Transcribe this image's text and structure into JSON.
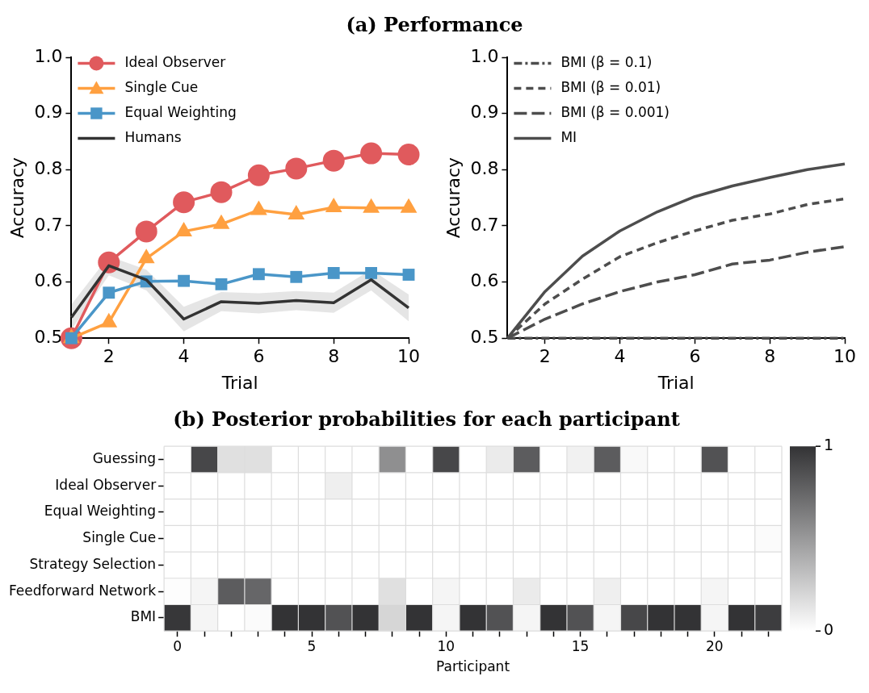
{
  "chart_data": [
    {
      "type": "line",
      "title": "(a) Performance",
      "xlabel": "Trial",
      "ylabel": "Accuracy",
      "x": [
        1,
        2,
        3,
        4,
        5,
        6,
        7,
        8,
        9,
        10
      ],
      "xlim": [
        1,
        10
      ],
      "xticks": [
        2,
        4,
        6,
        8,
        10
      ],
      "ylim": [
        0.5,
        1.0
      ],
      "yticks": [
        {
          "value": 0.5,
          "label": "0.5"
        },
        {
          "value": 0.6,
          "label": "0.6"
        },
        {
          "value": 0.7,
          "label": "0.7"
        },
        {
          "value": 0.8,
          "label": "0.8"
        },
        {
          "value": 0.9,
          "label": "0.9"
        },
        {
          "value": 1.0,
          "label": "1.0"
        }
      ],
      "grid": false,
      "legend": "top left",
      "series": [
        {
          "name": "Ideal Observer",
          "color": "#e05a5d",
          "marker": "circle",
          "line_style": "solid",
          "values": [
            0.5,
            0.635,
            0.69,
            0.742,
            0.76,
            0.79,
            0.802,
            0.816,
            0.829,
            0.827
          ]
        },
        {
          "name": "Single Cue",
          "color": "#ffa040",
          "marker": "triangle",
          "line_style": "solid",
          "values": [
            0.5,
            0.528,
            0.642,
            0.69,
            0.703,
            0.728,
            0.72,
            0.733,
            0.732,
            0.732
          ]
        },
        {
          "name": "Equal Weighting",
          "color": "#4a96c8",
          "marker": "square",
          "line_style": "solid",
          "values": [
            0.5,
            0.581,
            0.601,
            0.602,
            0.596,
            0.614,
            0.609,
            0.616,
            0.616,
            0.613
          ]
        },
        {
          "name": "Humans",
          "color": "#333333",
          "marker": "none",
          "line_style": "solid",
          "values": [
            0.537,
            0.629,
            0.604,
            0.534,
            0.565,
            0.562,
            0.567,
            0.563,
            0.604,
            0.554
          ],
          "lower": [
            0.515,
            0.612,
            0.585,
            0.512,
            0.548,
            0.544,
            0.55,
            0.545,
            0.585,
            0.53
          ],
          "upper": [
            0.56,
            0.646,
            0.622,
            0.556,
            0.582,
            0.58,
            0.584,
            0.581,
            0.622,
            0.578
          ]
        }
      ]
    },
    {
      "type": "line",
      "xlabel": "Trial",
      "ylabel": "Accuracy",
      "x": [
        1,
        2,
        3,
        4,
        5,
        6,
        7,
        8,
        9,
        10
      ],
      "xlim": [
        1,
        10
      ],
      "xticks": [
        2,
        4,
        6,
        8,
        10
      ],
      "ylim": [
        0.5,
        1.0
      ],
      "yticks": [
        {
          "value": 0.5,
          "label": "0.5"
        },
        {
          "value": 0.6,
          "label": "0.6"
        },
        {
          "value": 0.7,
          "label": "0.7"
        },
        {
          "value": 0.8,
          "label": "0.8"
        },
        {
          "value": 0.9,
          "label": "0.9"
        },
        {
          "value": 1.0,
          "label": "1.0"
        }
      ],
      "grid": false,
      "legend": "top left",
      "marker": "none",
      "series": [
        {
          "name": "BMI (β = 0.1)",
          "color": "#4d4d4d",
          "line_style": "dashed",
          "values": [
            0.5,
            0.5,
            0.5,
            0.5,
            0.5,
            0.5,
            0.5,
            0.5,
            0.5,
            0.5
          ]
        },
        {
          "name": "BMI (β = 0.01)",
          "color": "#4d4d4d",
          "line_style": "dashed",
          "values": [
            0.5,
            0.561,
            0.605,
            0.645,
            0.67,
            0.691,
            0.71,
            0.721,
            0.738,
            0.748
          ]
        },
        {
          "name": "BMI (β = 0.001)",
          "color": "#4d4d4d",
          "line_style": "dashed",
          "values": [
            0.5,
            0.534,
            0.561,
            0.583,
            0.6,
            0.613,
            0.632,
            0.639,
            0.653,
            0.663
          ]
        },
        {
          "name": "MI",
          "color": "#4d4d4d",
          "line_style": "solid",
          "values": [
            0.5,
            0.583,
            0.646,
            0.691,
            0.725,
            0.752,
            0.771,
            0.786,
            0.8,
            0.81
          ]
        }
      ]
    },
    {
      "type": "heatmap",
      "title": "(b) Posterior probabilities for each participant",
      "xlabel": "Participant",
      "categories": [
        "0",
        null,
        null,
        null,
        null,
        "5",
        null,
        null,
        null,
        null,
        "10",
        null,
        null,
        null,
        null,
        "15",
        null,
        null,
        null,
        null,
        "20",
        null,
        null
      ],
      "y_categories": [
        "Guessing",
        "Ideal Observer",
        "Equal Weighting",
        "Single Cue",
        "Strategy Selection",
        "Feedforward Network",
        "BMI"
      ],
      "clim": [
        0,
        1
      ],
      "cticks": [
        0,
        1
      ],
      "cells": [
        [
          0,
          0.9,
          0.15,
          0.15,
          0,
          0,
          0,
          0,
          0.55,
          0,
          0.9,
          0,
          0.1,
          0.8,
          0,
          0.07,
          0.8,
          0.03,
          0,
          0,
          0.85,
          0,
          0
        ],
        [
          0,
          0,
          0,
          0,
          0,
          0,
          0.08,
          0,
          0,
          0,
          0,
          0,
          0,
          0,
          0,
          0,
          0,
          0,
          0,
          0,
          0,
          0,
          0
        ],
        [
          0,
          0,
          0,
          0,
          0,
          0,
          0,
          0,
          0,
          0,
          0,
          0,
          0,
          0,
          0,
          0,
          0,
          0,
          0,
          0,
          0,
          0,
          0
        ],
        [
          0,
          0,
          0,
          0,
          0,
          0,
          0,
          0,
          0,
          0,
          0,
          0,
          0,
          0,
          0,
          0,
          0,
          0,
          0,
          0,
          0,
          0,
          0.02
        ],
        [
          0,
          0,
          0,
          0,
          0,
          0,
          0,
          0,
          0,
          0,
          0,
          0,
          0,
          0,
          0,
          0,
          0,
          0,
          0,
          0,
          0,
          0,
          0
        ],
        [
          0.01,
          0.05,
          0.8,
          0.75,
          0,
          0,
          0,
          0,
          0.15,
          0,
          0.05,
          0,
          0,
          0.1,
          0,
          0,
          0.08,
          0,
          0,
          0,
          0.05,
          0,
          0
        ],
        [
          0.98,
          0.05,
          0,
          0.02,
          1,
          1,
          0.85,
          1,
          0.2,
          1,
          0.05,
          1,
          0.85,
          0.05,
          1,
          0.85,
          0.05,
          0.9,
          1,
          1,
          0.05,
          1,
          0.95
        ]
      ]
    }
  ]
}
